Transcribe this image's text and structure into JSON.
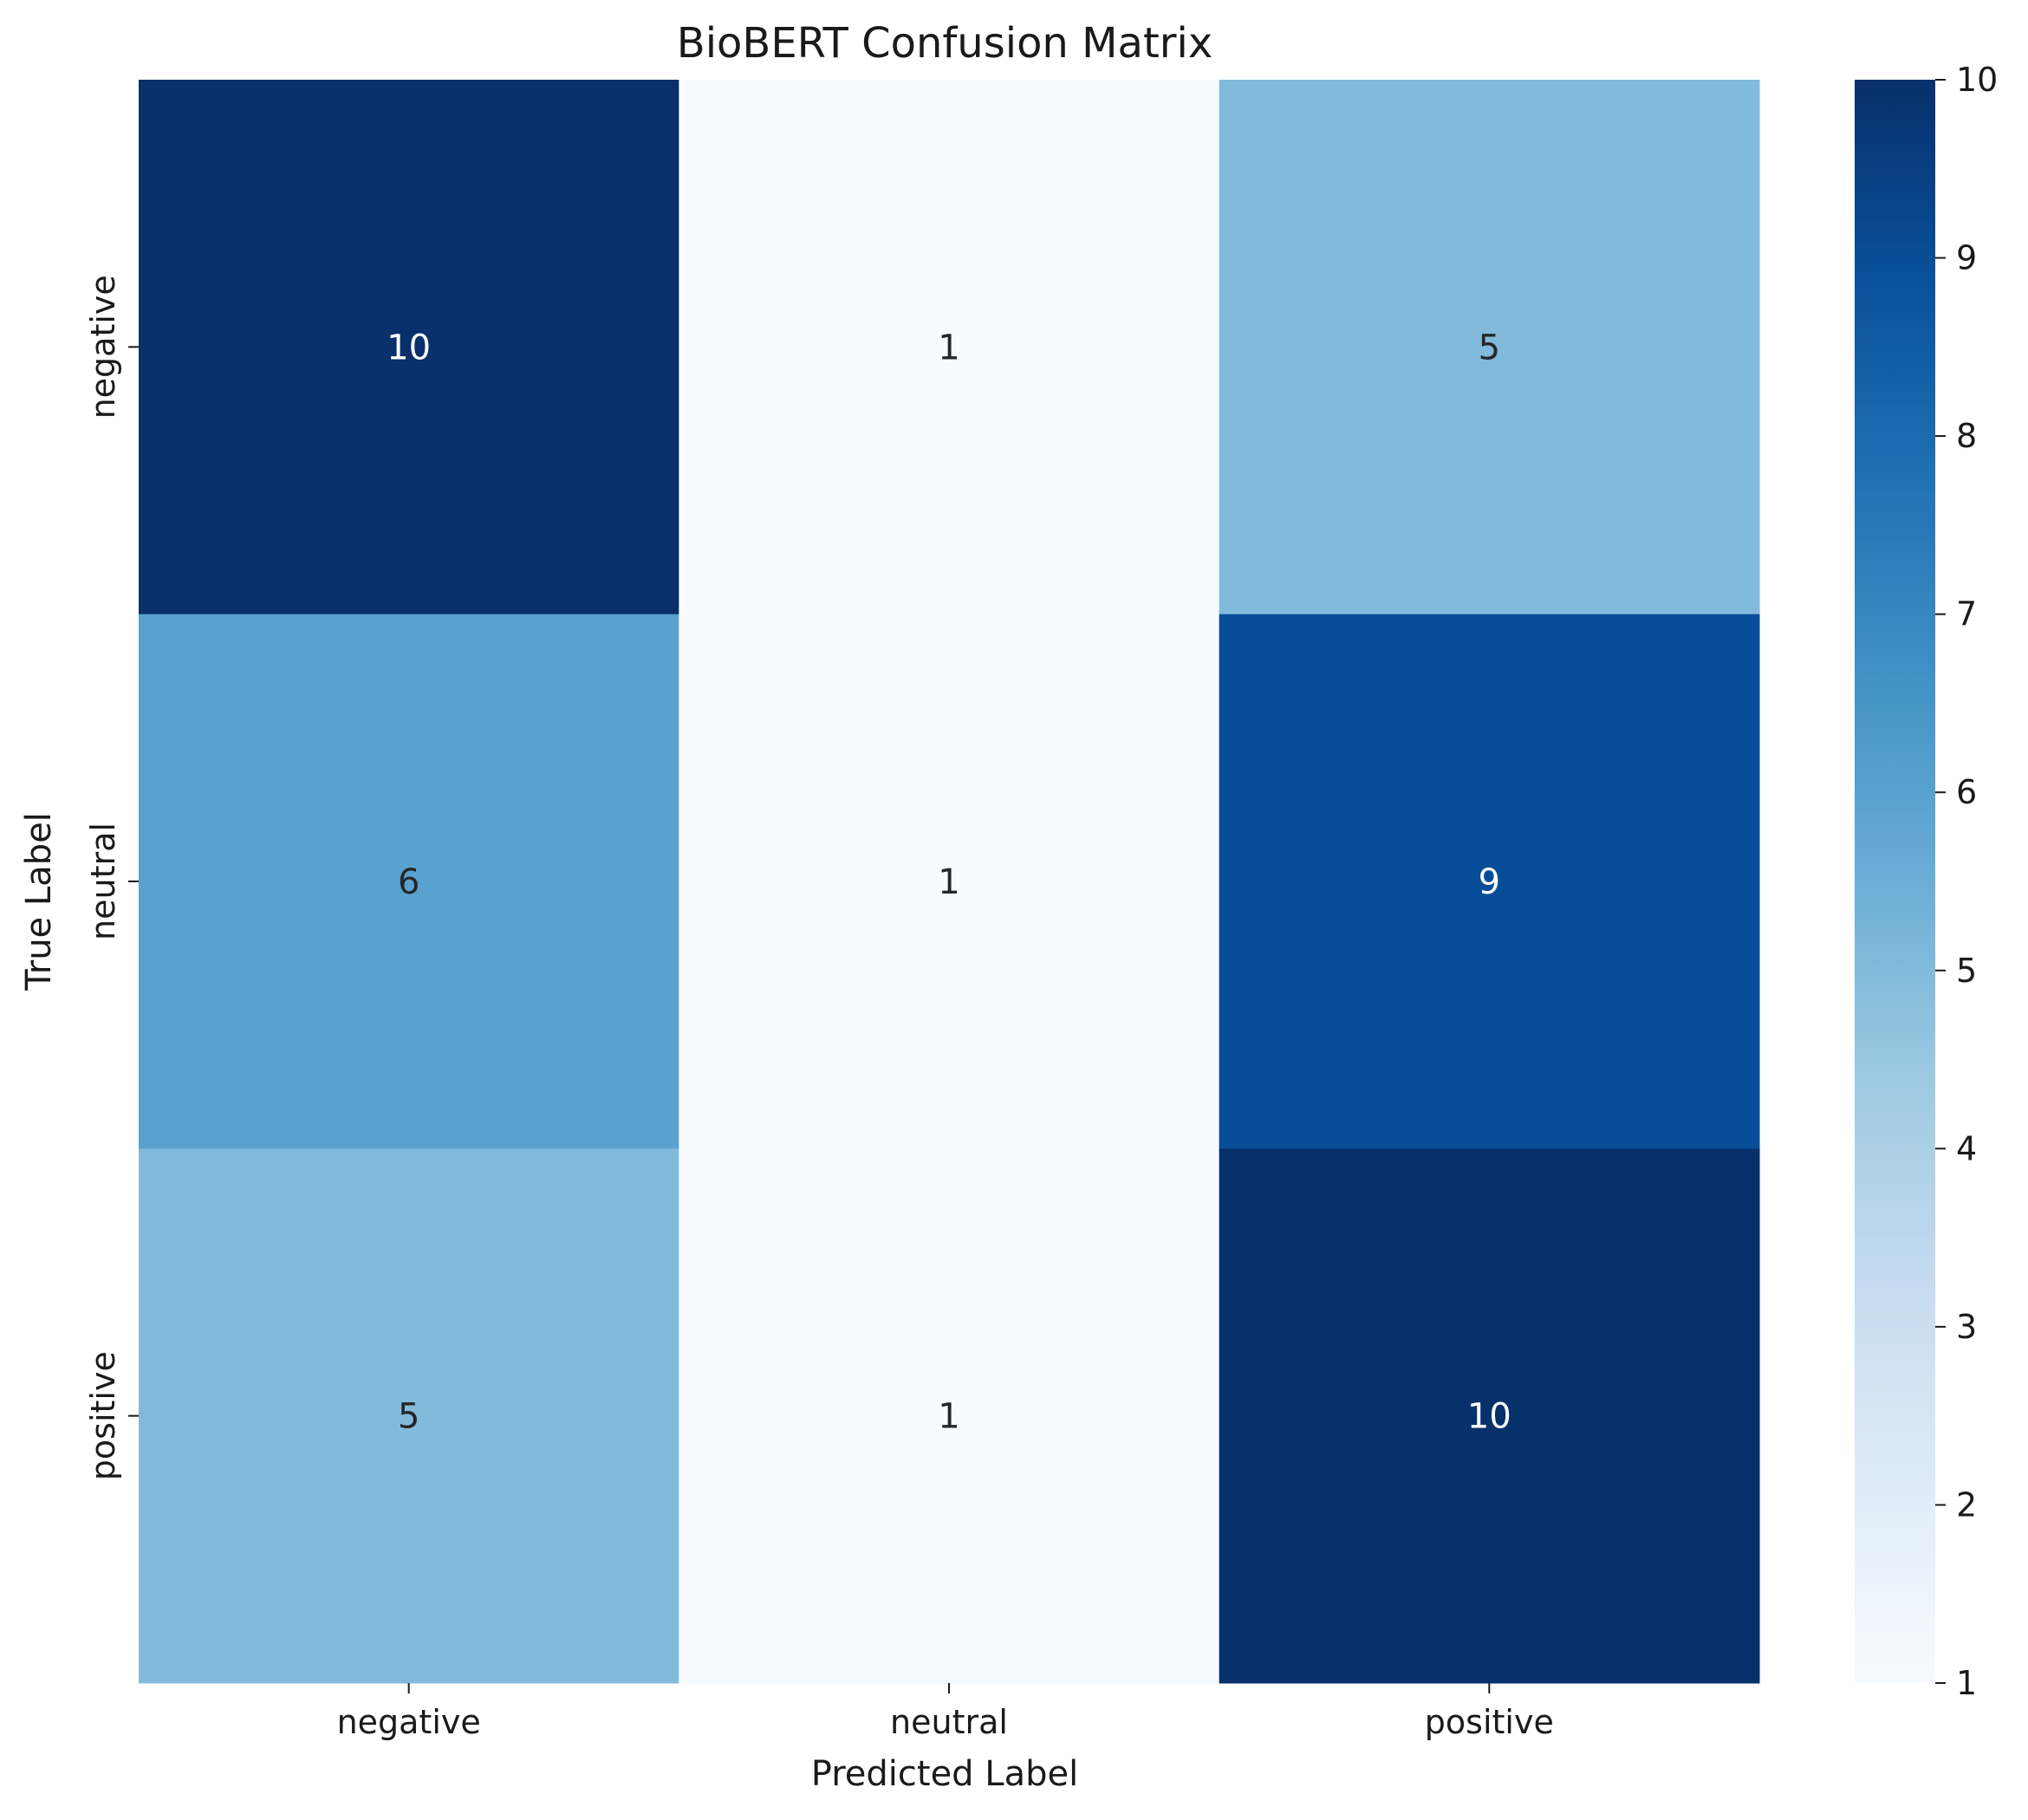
{
  "chart_data": {
    "type": "heatmap",
    "title": "BioBERT Confusion Matrix",
    "xlabel": "Predicted Label",
    "ylabel": "True Label",
    "x_categories": [
      "negative",
      "neutral",
      "positive"
    ],
    "y_categories": [
      "negative",
      "neutral",
      "positive"
    ],
    "values": [
      [
        10,
        1,
        5
      ],
      [
        6,
        1,
        9
      ],
      [
        5,
        1,
        10
      ]
    ],
    "colormap": "Blues",
    "colorbar": {
      "range": [
        1,
        10
      ],
      "ticks": [
        "1",
        "2",
        "3",
        "4",
        "5",
        "6",
        "7",
        "8",
        "9",
        "10"
      ]
    },
    "grid": false
  }
}
